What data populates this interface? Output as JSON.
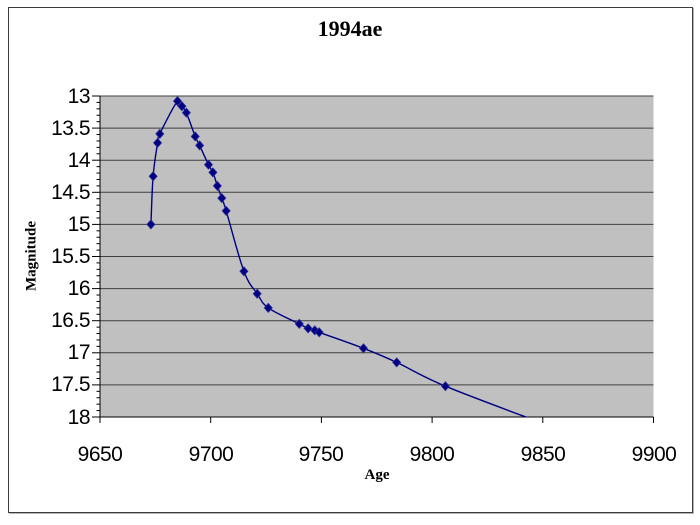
{
  "chart": {
    "title": "1994ae",
    "x_axis_title": "Age",
    "y_axis_title": "Magnitude"
  },
  "chart_data": {
    "type": "line",
    "title": "1994ae",
    "xlabel": "Age",
    "ylabel": "Magnitude",
    "xlim": [
      9650,
      9900
    ],
    "ylim_top_to_bottom": [
      13,
      18
    ],
    "y_axis_inverted": true,
    "x_ticks": [
      9650,
      9700,
      9750,
      9800,
      9850,
      9900
    ],
    "y_ticks": [
      13,
      13.5,
      14,
      14.5,
      15,
      15.5,
      16,
      16.5,
      17,
      17.5,
      18
    ],
    "y_minor_tick_step": 0.1,
    "grid": true,
    "legend": false,
    "smoothed_line": true,
    "marker": "diamond",
    "plot_background": "#c0c0c0",
    "gridline_color": "#3f3f3f",
    "axis_color": "#000000",
    "series": [
      {
        "name": "1994ae",
        "color": "#000080",
        "points": [
          [
            9673,
            15.0
          ],
          [
            9674,
            14.25
          ],
          [
            9676,
            13.73
          ],
          [
            9677,
            13.59
          ],
          [
            9685,
            13.08
          ],
          [
            9687,
            13.16
          ],
          [
            9689,
            13.26
          ],
          [
            9693,
            13.63
          ],
          [
            9695,
            13.77
          ],
          [
            9699,
            14.07
          ],
          [
            9701,
            14.19
          ],
          [
            9703,
            14.4
          ],
          [
            9705,
            14.59
          ],
          [
            9707,
            14.79
          ],
          [
            9715,
            15.73
          ],
          [
            9721,
            16.08
          ],
          [
            9726,
            16.3
          ],
          [
            9740,
            16.55
          ],
          [
            9744,
            16.62
          ],
          [
            9747,
            16.65
          ],
          [
            9749,
            16.68
          ],
          [
            9769,
            16.93
          ],
          [
            9784,
            17.15
          ],
          [
            9806,
            17.52
          ]
        ],
        "line_continues_to": [
          9850,
          18.1
        ]
      }
    ]
  }
}
